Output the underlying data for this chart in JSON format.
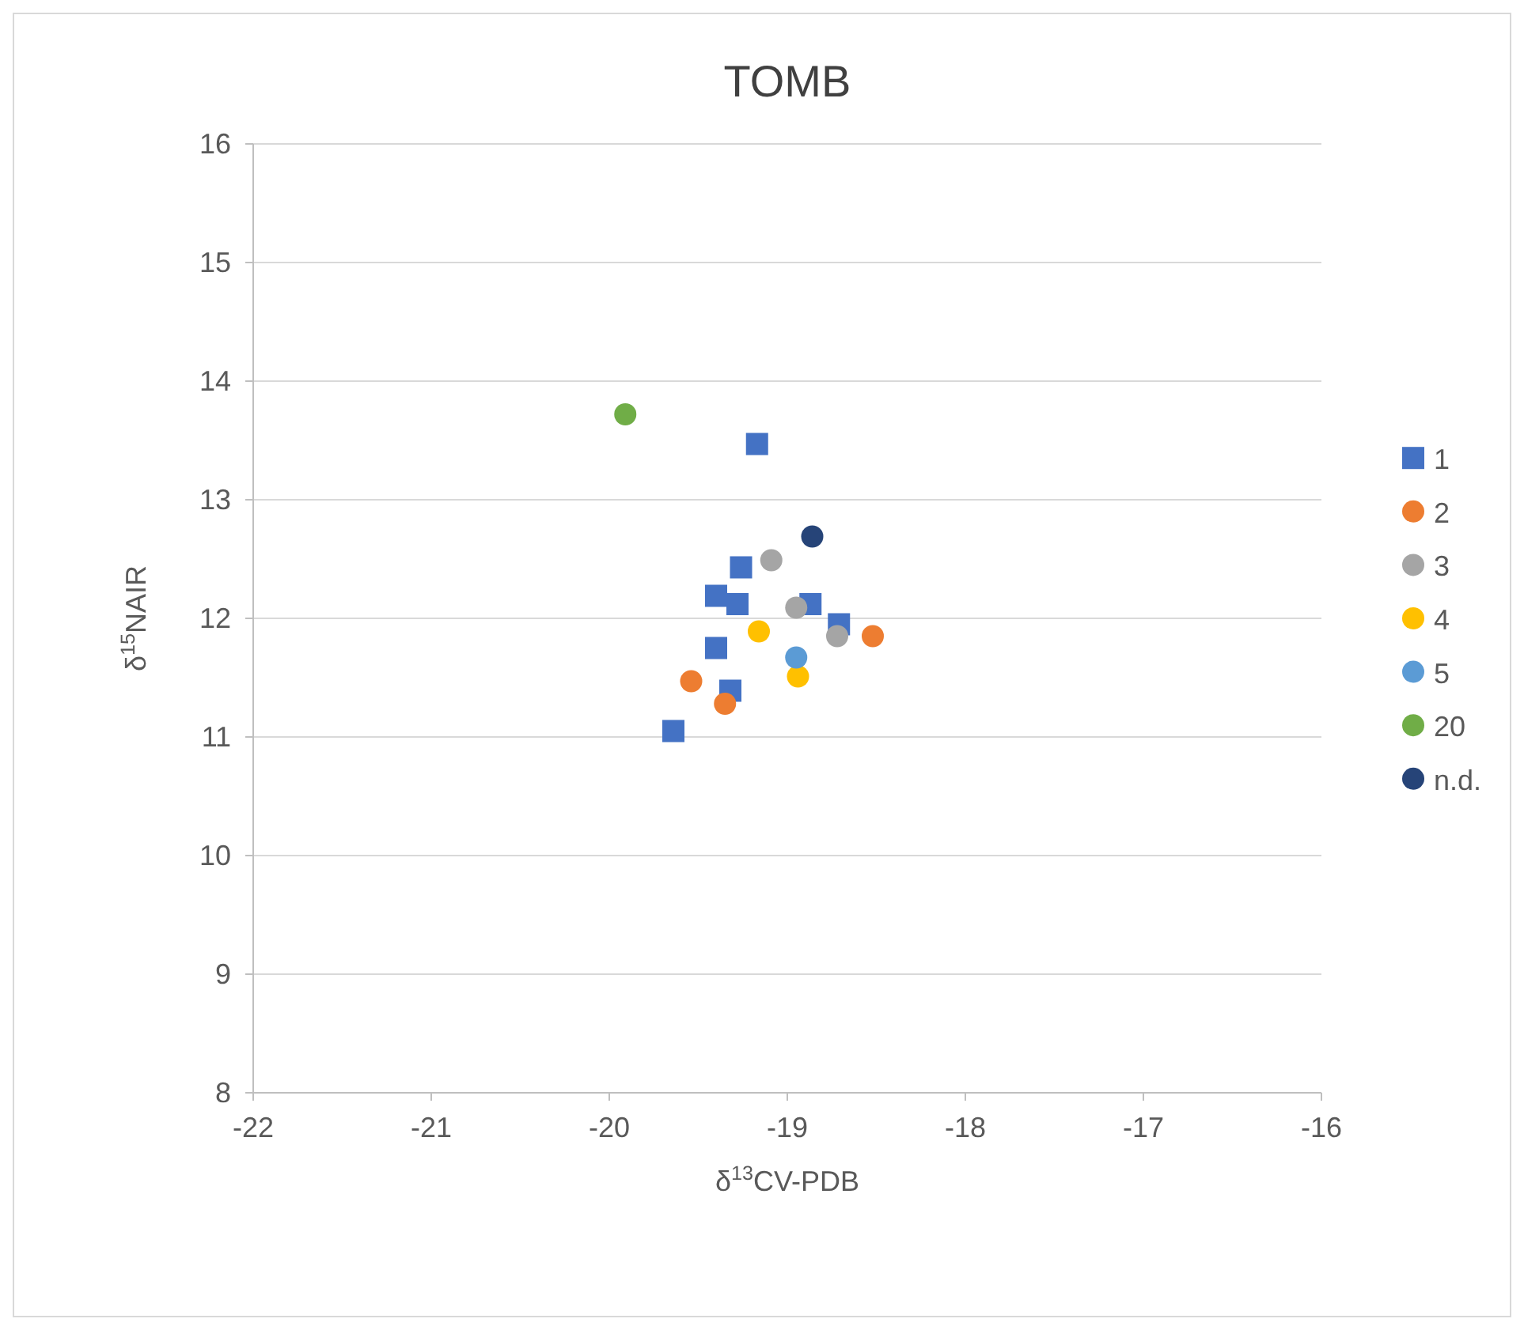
{
  "chart_data": {
    "type": "scatter",
    "title": "TOMB",
    "xlabel": "δ$^{13}$CV-PDB",
    "ylabel": "δ$^{15}$NAIR",
    "xlim": [
      -22,
      -16
    ],
    "xticks": [
      -22,
      -21,
      -20,
      -19,
      -18,
      -17,
      -16
    ],
    "ylim": [
      8,
      16
    ],
    "yticks": [
      8,
      9,
      10,
      11,
      12,
      13,
      14,
      15,
      16
    ],
    "grid": "y",
    "legend": "right",
    "series": [
      {
        "name": "1",
        "color": "#4472c4",
        "marker": "square",
        "x": [
          -19.17,
          -19.26,
          -19.4,
          -19.28,
          -18.87,
          -18.71,
          -19.4,
          -19.32,
          -19.64
        ],
        "values": [
          13.47,
          12.43,
          12.19,
          12.12,
          12.12,
          11.95,
          11.75,
          11.39,
          11.05
        ]
      },
      {
        "name": "2",
        "color": "#ed7d31",
        "marker": "circle",
        "x": [
          -19.54,
          -19.35,
          -18.52
        ],
        "values": [
          11.47,
          11.28,
          11.85
        ]
      },
      {
        "name": "3",
        "color": "#a5a5a5",
        "marker": "circle",
        "x": [
          -19.09,
          -18.95,
          -18.72
        ],
        "values": [
          12.49,
          12.09,
          11.85
        ]
      },
      {
        "name": "4",
        "color": "#ffc000",
        "marker": "circle",
        "x": [
          -19.16,
          -18.94
        ],
        "values": [
          11.89,
          11.51
        ]
      },
      {
        "name": "5",
        "color": "#5b9bd5",
        "marker": "circle",
        "x": [
          -18.95
        ],
        "values": [
          11.67
        ]
      },
      {
        "name": "20",
        "color": "#70ad47",
        "marker": "circle",
        "x": [
          -19.91
        ],
        "values": [
          13.72
        ]
      },
      {
        "name": "n.d.",
        "color": "#264478",
        "marker": "circle",
        "x": [
          -18.86
        ],
        "values": [
          12.69
        ]
      }
    ]
  }
}
